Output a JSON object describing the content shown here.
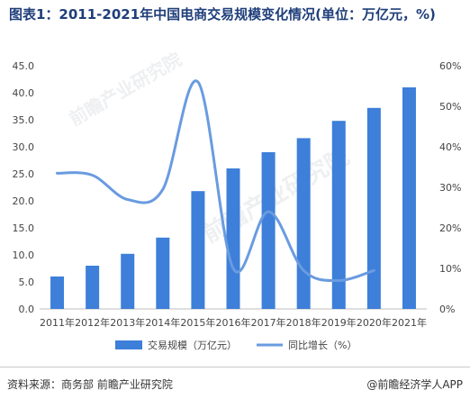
{
  "title": "图表1：2011-2021年中国电商交易规模变化情况(单位：万亿元，%)",
  "watermark_text": "前瞻产业研究院",
  "footer": {
    "source": "资料来源：商务部 前瞻产业研究院",
    "brand": "@前瞻经济学人APP"
  },
  "chart_data": {
    "type": "bar+line",
    "categories": [
      "2011年",
      "2012年",
      "2013年",
      "2014年",
      "2015年",
      "2016年",
      "2017年",
      "2018年",
      "2019年",
      "2020年",
      "2021年"
    ],
    "series": [
      {
        "name": "交易规模（万亿元）",
        "type": "bar",
        "axis": "left",
        "color": "#3d7fd9",
        "values": [
          6.0,
          8.0,
          10.2,
          13.2,
          21.8,
          26.0,
          29.0,
          31.6,
          34.8,
          37.2,
          41.0
        ]
      },
      {
        "name": "同比增长（%）",
        "type": "line",
        "axis": "right",
        "color": "#6a9be0",
        "values": [
          33.5,
          33.0,
          27.0,
          29.5,
          56.0,
          10.0,
          24.0,
          9.5,
          7.0,
          9.5,
          null
        ]
      }
    ],
    "y_left": {
      "min": 0,
      "max": 45,
      "ticks": [
        "0.0",
        "5.0",
        "10.0",
        "15.0",
        "20.0",
        "25.0",
        "30.0",
        "35.0",
        "40.0",
        "45.0"
      ]
    },
    "y_right": {
      "min": 0,
      "max": 60,
      "ticks": [
        "0%",
        "10%",
        "20%",
        "30%",
        "40%",
        "50%",
        "60%"
      ]
    },
    "grid": false,
    "legend_position": "bottom"
  }
}
